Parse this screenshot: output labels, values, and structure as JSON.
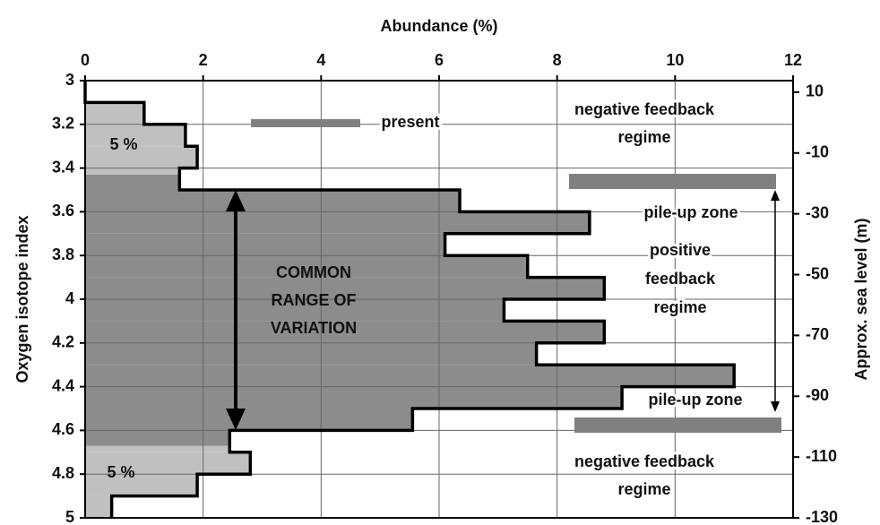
{
  "chart_data": {
    "type": "histogram",
    "xlabel": "Abundance (%)",
    "ylabel": "Oxygen isotope index",
    "y2label": "Approx. sea level (m)",
    "bins": [
      3,
      3.1,
      3.2,
      3.3,
      3.4,
      3.5,
      3.6,
      3.7,
      3.8,
      3.9,
      4,
      4.1,
      4.2,
      4.3,
      4.4,
      4.5,
      4.6,
      4.7,
      4.8,
      4.9,
      5
    ],
    "values": [
      0,
      1.0,
      1.7,
      1.9,
      1.6,
      6.35,
      8.55,
      6.1,
      7.5,
      8.8,
      7.1,
      8.8,
      7.65,
      11.0,
      9.1,
      5.55,
      2.45,
      2.8,
      1.9,
      0.45
    ],
    "dark_range": [
      3.43,
      4.67
    ],
    "colors": {
      "light": "#c0c0c0",
      "dark": "#8c8c8c"
    },
    "xlim": [
      0,
      12
    ],
    "xticks": [
      0,
      2,
      4,
      6,
      8,
      10,
      12
    ],
    "ylim": [
      3,
      5
    ],
    "yticks": [
      3,
      3.2,
      3.4,
      3.6,
      3.8,
      4,
      4.2,
      4.4,
      4.6,
      4.8,
      5
    ],
    "y2lim": [
      13.8,
      -130
    ],
    "y2ticks": [
      10,
      -10,
      -30,
      -50,
      -70,
      -90,
      -110,
      -130
    ],
    "grid": true,
    "annotations": [
      [
        "present"
      ],
      [
        "negative feedback",
        "regime"
      ],
      [
        "pile-up zone"
      ],
      [
        "positive",
        "feedback",
        "regime"
      ],
      [
        "pile-up zone"
      ],
      [
        "negative feedback",
        "regime"
      ],
      [
        "COMMON",
        "RANGE OF",
        "VARIATION"
      ],
      [
        "5 %"
      ],
      [
        "5 %"
      ]
    ]
  }
}
